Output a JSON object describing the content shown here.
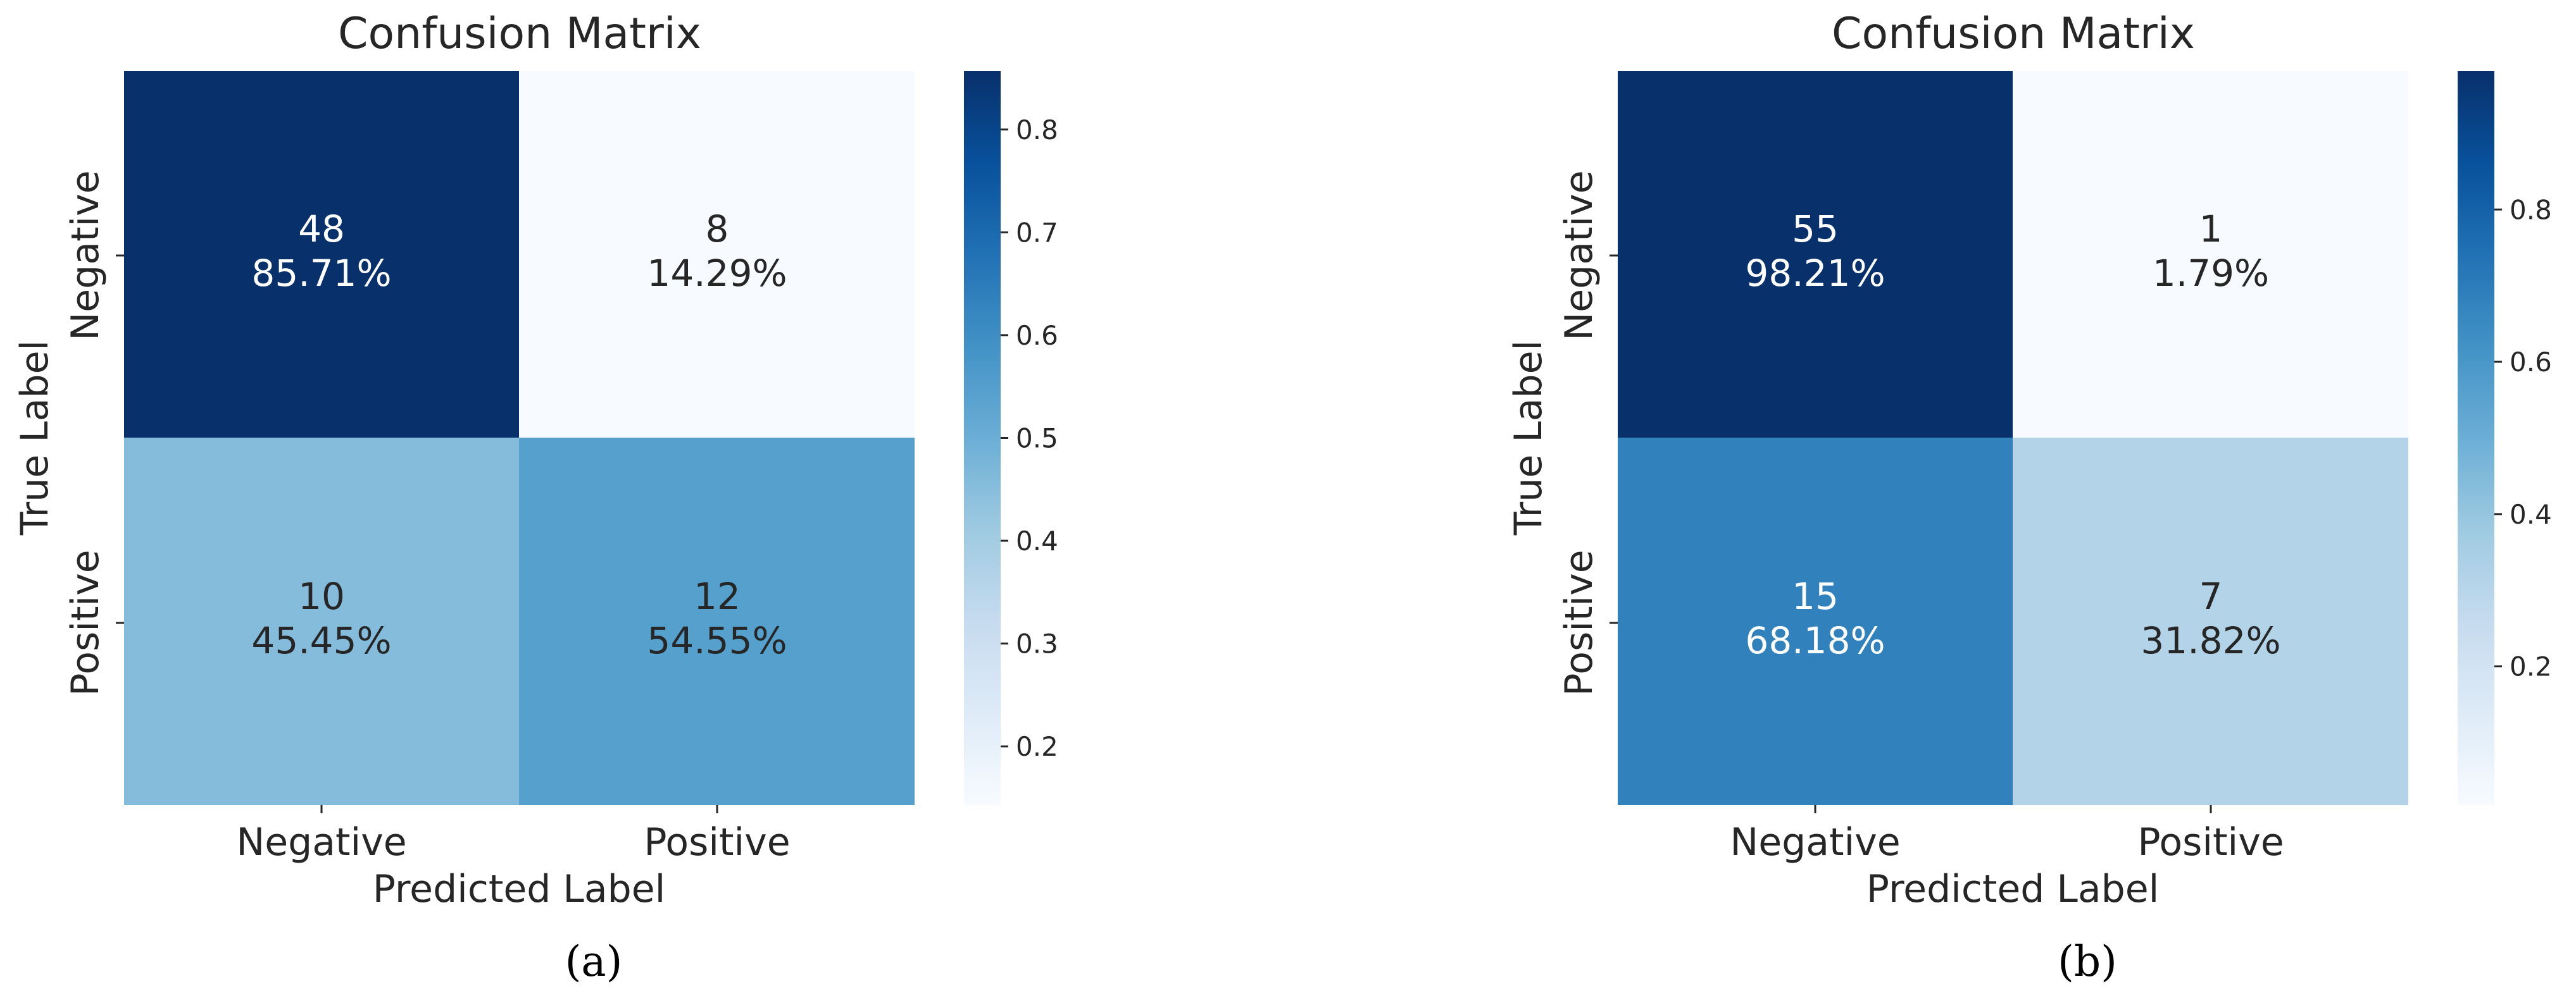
{
  "chart_data": [
    {
      "type": "heatmap",
      "title": "Confusion Matrix",
      "xlabel": "Predicted Label",
      "ylabel": "True Label",
      "x_categories": [
        "Negative",
        "Positive"
      ],
      "y_categories": [
        "Negative",
        "Positive"
      ],
      "counts": [
        [
          48,
          8
        ],
        [
          10,
          12
        ]
      ],
      "percent_labels": [
        [
          "85.71%",
          "14.29%"
        ],
        [
          "45.45%",
          "54.55%"
        ]
      ],
      "values": [
        [
          0.8571,
          0.1429
        ],
        [
          0.4545,
          0.5455
        ]
      ],
      "colorbar": {
        "min": 0.1429,
        "max": 0.8571,
        "ticks": [
          0.2,
          0.3,
          0.4,
          0.5,
          0.6,
          0.7,
          0.8
        ],
        "tick_labels": [
          "0.2",
          "0.3",
          "0.4",
          "0.5",
          "0.6",
          "0.7",
          "0.8"
        ]
      },
      "caption": "(a)"
    },
    {
      "type": "heatmap",
      "title": "Confusion Matrix",
      "xlabel": "Predicted Label",
      "ylabel": "True Label",
      "x_categories": [
        "Negative",
        "Positive"
      ],
      "y_categories": [
        "Negative",
        "Positive"
      ],
      "counts": [
        [
          55,
          1
        ],
        [
          15,
          7
        ]
      ],
      "percent_labels": [
        [
          "98.21%",
          "1.79%"
        ],
        [
          "68.18%",
          "31.82%"
        ]
      ],
      "values": [
        [
          0.9821,
          0.0179
        ],
        [
          0.6818,
          0.3182
        ]
      ],
      "colorbar": {
        "min": 0.0179,
        "max": 0.9821,
        "ticks": [
          0.2,
          0.4,
          0.6,
          0.8
        ],
        "tick_labels": [
          "0.2",
          "0.4",
          "0.6",
          "0.8"
        ]
      },
      "caption": "(b)"
    }
  ],
  "colors": {
    "colormap": "Blues",
    "stops": [
      "#f7fbff",
      "#deebf7",
      "#c6dbef",
      "#9ecae1",
      "#6baed6",
      "#4292c6",
      "#2171b5",
      "#08519c",
      "#08306b"
    ],
    "light_text": "#ffffff",
    "dark_text": "#262626"
  }
}
